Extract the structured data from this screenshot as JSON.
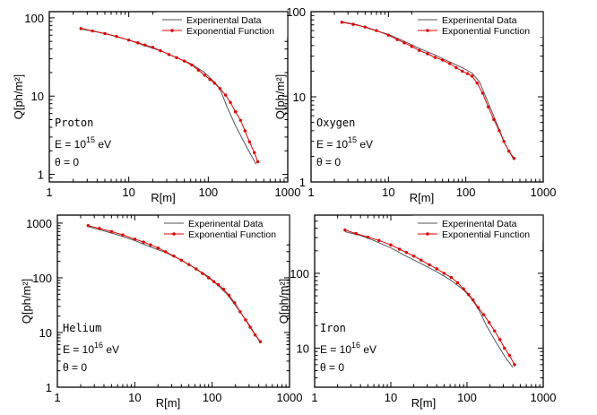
{
  "legend": {
    "experimental_label": "Experinental Data",
    "exponential_label": "Exponential Function"
  },
  "colors": {
    "experimental": "#555555",
    "exponential": "#e00000"
  },
  "chart_data": [
    {
      "type": "line",
      "xlabel": "R[m]",
      "ylabel": "Q[ph/m²]",
      "xscale": "log",
      "yscale": "log",
      "xlim": [
        1,
        1000
      ],
      "ylim": [
        0.8,
        120
      ],
      "xticks": [
        "1",
        "10",
        "100",
        "1000"
      ],
      "yticks": [
        {
          "v": 1,
          "label": "1"
        },
        {
          "v": 10,
          "label": "10"
        },
        {
          "v": 100,
          "label": "100"
        }
      ],
      "legend_position": "top-right",
      "annotation": {
        "particle": "Proton",
        "energy_base": "E = 10",
        "energy_exp": "15",
        "energy_unit": " eV",
        "angle": "θ = 0"
      },
      "series": [
        {
          "name": "Experinental Data",
          "x": [
            2.5,
            4,
            6,
            10,
            15,
            25,
            40,
            60,
            90,
            120,
            140,
            170,
            220,
            300,
            400
          ],
          "y": [
            72,
            66,
            60,
            52,
            45,
            38,
            31,
            26,
            20,
            15,
            12.5,
            7.5,
            4.2,
            2.3,
            1.35
          ]
        },
        {
          "name": "Exponential Function",
          "x": [
            2.5,
            3.5,
            5,
            7,
            10,
            13,
            16,
            20,
            25,
            32,
            40,
            50,
            62,
            75,
            90,
            105,
            120,
            140,
            165,
            190,
            220,
            255,
            290,
            330,
            380,
            420
          ],
          "y": [
            73,
            68,
            63,
            58,
            52,
            48,
            45,
            42,
            38,
            34,
            31,
            28,
            25,
            21.5,
            18.5,
            16.3,
            14.6,
            12.5,
            10.3,
            8.3,
            6.3,
            4.9,
            3.6,
            2.6,
            1.9,
            1.45
          ]
        }
      ]
    },
    {
      "type": "line",
      "xlabel": "R[m]",
      "ylabel": "Q[ph/m²]",
      "xscale": "log",
      "yscale": "log",
      "xlim": [
        1,
        1000
      ],
      "ylim": [
        1,
        100
      ],
      "xticks": [
        "1",
        "10",
        "100",
        "1000"
      ],
      "yticks": [
        {
          "v": 1,
          "label": "1"
        },
        {
          "v": 10,
          "label": "10"
        },
        {
          "v": 100,
          "label": "100"
        }
      ],
      "legend_position": "top-right",
      "annotation": {
        "particle": "Oxygen",
        "energy_base": "E = 10",
        "energy_exp": "15",
        "energy_unit": " eV",
        "angle": "θ = 0"
      },
      "series": [
        {
          "name": "Experinental Data",
          "x": [
            2.5,
            4,
            6,
            10,
            15,
            25,
            40,
            60,
            90,
            120,
            150,
            200,
            260,
            320,
            420
          ],
          "y": [
            76,
            70,
            62,
            54,
            46,
            37,
            31,
            26,
            22,
            19,
            15,
            8,
            4.5,
            2.8,
            1.8
          ]
        },
        {
          "name": "Exponential Function",
          "x": [
            2.5,
            3.5,
            5,
            7,
            10,
            13,
            16,
            20,
            25,
            32,
            40,
            50,
            62,
            75,
            90,
            105,
            120,
            140,
            165,
            195,
            230,
            270,
            310,
            360,
            420
          ],
          "y": [
            75,
            71,
            66,
            60,
            53,
            47,
            43,
            39,
            35,
            32,
            29,
            27,
            24.5,
            22,
            20,
            18.7,
            17.5,
            14.5,
            11,
            7.6,
            5.4,
            4,
            3,
            2.3,
            1.9
          ]
        }
      ]
    },
    {
      "type": "line",
      "xlabel": "R[m]",
      "ylabel": "Q[ph/m²]",
      "xscale": "log",
      "yscale": "log",
      "xlim": [
        1,
        1000
      ],
      "ylim": [
        1,
        1400
      ],
      "xticks": [
        "1",
        "10",
        "100",
        "1000"
      ],
      "yticks": [
        {
          "v": 1,
          "label": "1"
        },
        {
          "v": 10,
          "label": "10"
        },
        {
          "v": 100,
          "label": "100"
        },
        {
          "v": 1000,
          "label": "1000"
        }
      ],
      "legend_position": "top-right",
      "annotation": {
        "particle": "Helium",
        "energy_base": "E = 10",
        "energy_exp": "16",
        "energy_unit": " eV",
        "angle": "θ = 0"
      },
      "series": [
        {
          "name": "Experinental Data",
          "x": [
            2.5,
            4,
            6,
            10,
            15,
            25,
            40,
            60,
            90,
            120,
            160,
            220,
            300,
            420
          ],
          "y": [
            860,
            720,
            610,
            480,
            380,
            290,
            210,
            150,
            105,
            72,
            48,
            26,
            14,
            6.5
          ]
        },
        {
          "name": "Exponential Function",
          "x": [
            2.5,
            3.5,
            5,
            7,
            10,
            13,
            16,
            20,
            25,
            32,
            40,
            50,
            62,
            75,
            90,
            105,
            120,
            140,
            165,
            195,
            230,
            270,
            310,
            360,
            420
          ],
          "y": [
            900,
            800,
            700,
            610,
            510,
            450,
            400,
            350,
            300,
            250,
            210,
            175,
            145,
            120,
            100,
            85,
            75,
            62,
            48,
            35,
            24,
            17,
            12.5,
            9,
            6.8
          ]
        }
      ]
    },
    {
      "type": "line",
      "xlabel": "R[m]",
      "ylabel": "Q[ph/m²]",
      "xscale": "log",
      "yscale": "log",
      "xlim": [
        1,
        1000
      ],
      "ylim": [
        3,
        600
      ],
      "xticks": [
        "1",
        "10",
        "100",
        "1000"
      ],
      "yticks": [
        {
          "v": 10,
          "label": "10"
        },
        {
          "v": 100,
          "label": "100"
        }
      ],
      "legend_position": "top-right",
      "annotation": {
        "particle": "Iron",
        "energy_base": "E = 10",
        "energy_exp": "16",
        "energy_unit": " eV",
        "angle": "θ = 0"
      },
      "series": [
        {
          "name": "Experinental Data",
          "x": [
            2.5,
            4,
            6,
            10,
            15,
            25,
            40,
            60,
            90,
            110,
            140,
            180,
            240,
            320,
            400
          ],
          "y": [
            360,
            320,
            275,
            220,
            175,
            135,
            105,
            82,
            60,
            48,
            34,
            20,
            12,
            7.5,
            5.5
          ]
        },
        {
          "name": "Exponential Function",
          "x": [
            2.5,
            3.5,
            5,
            7,
            10,
            13,
            16,
            20,
            25,
            32,
            40,
            50,
            62,
            75,
            90,
            105,
            120,
            140,
            165,
            195,
            230,
            270,
            310,
            360,
            420
          ],
          "y": [
            380,
            340,
            305,
            275,
            240,
            210,
            190,
            170,
            150,
            130,
            115,
            100,
            88,
            75,
            62,
            52,
            44,
            35,
            28,
            22,
            17,
            13,
            10,
            8,
            6
          ]
        }
      ]
    }
  ]
}
